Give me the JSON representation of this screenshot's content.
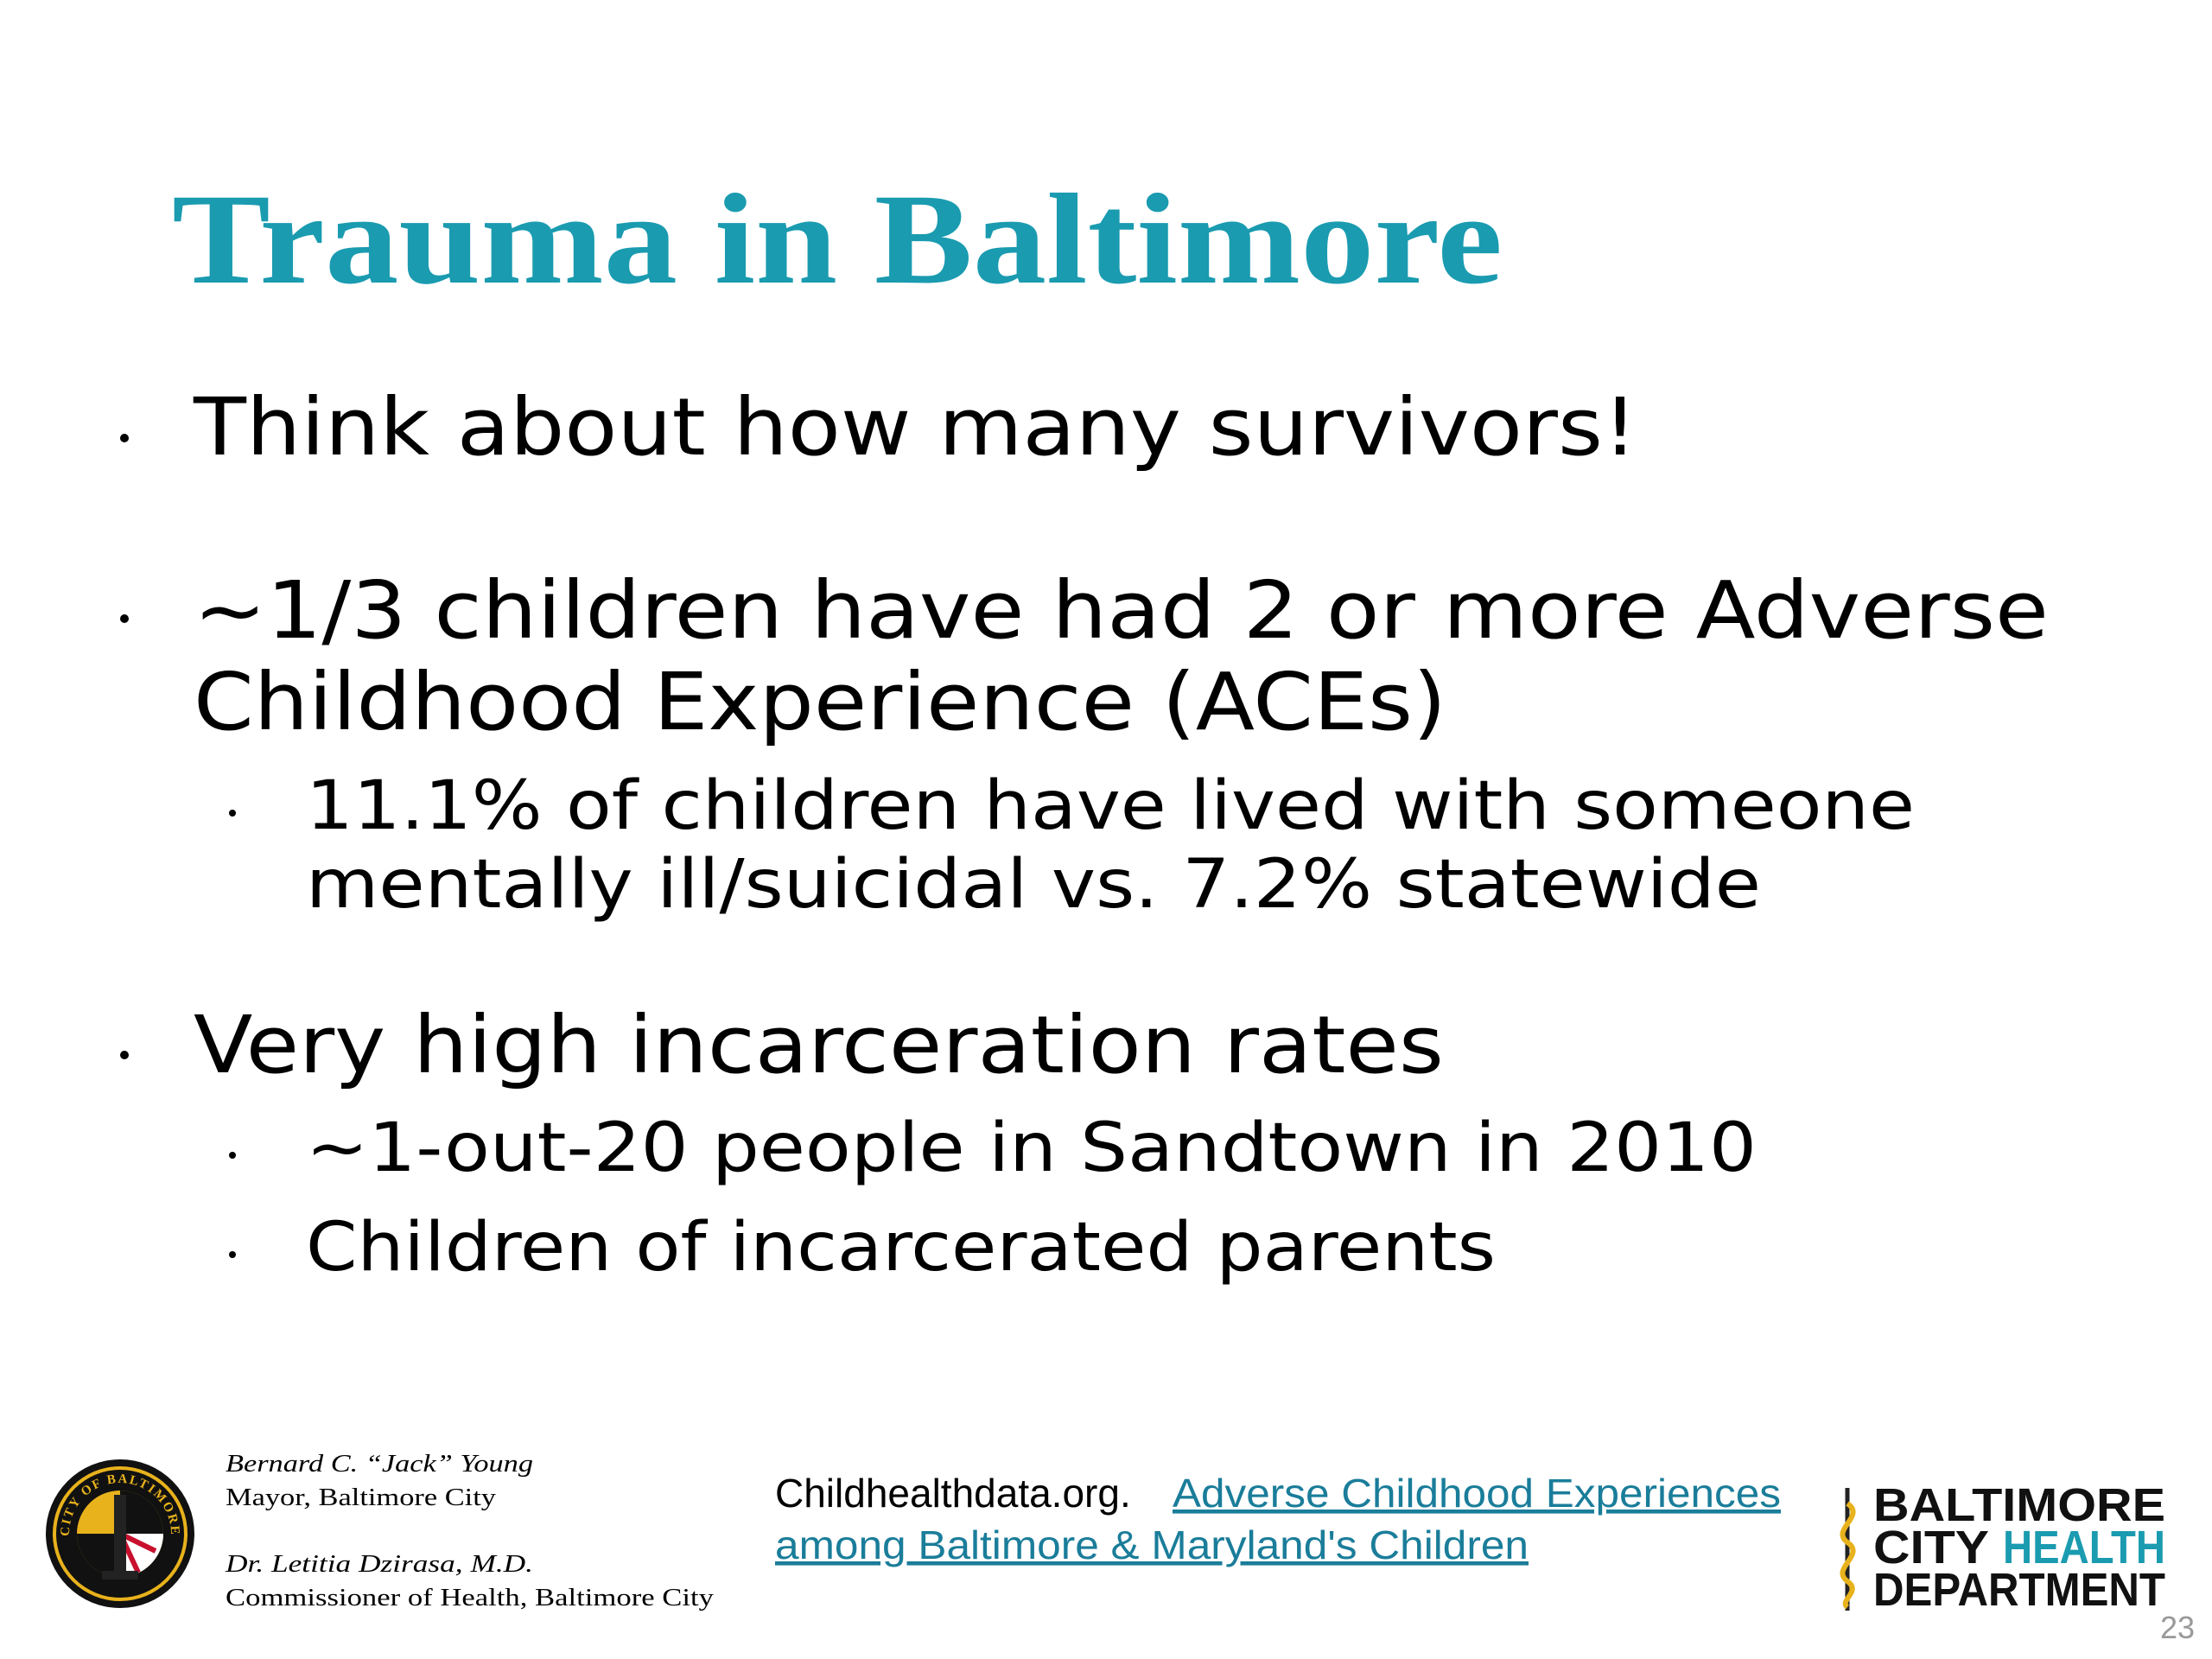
{
  "title": "Trauma in Baltimore",
  "bullets": [
    {
      "lines": [
        "Think about how many survivors!"
      ]
    },
    {
      "lines": [
        "~1/3 children have had 2 or more Adverse",
        "Childhood Experience (ACEs)"
      ],
      "sub": [
        {
          "lines": [
            "11.1% of children have lived with someone",
            "mentally ill/suicidal vs. 7.2% statewide"
          ]
        }
      ]
    },
    {
      "lines": [
        "Very high incarceration rates"
      ],
      "sub": [
        {
          "lines": [
            "~1-out-20 people in Sandtown in 2010"
          ]
        },
        {
          "lines": [
            "Children of incarcerated parents"
          ]
        }
      ]
    }
  ],
  "footer": {
    "seal": "CITY OF BALTIMORE",
    "mayor": {
      "name": "Bernard C. “Jack” Young",
      "role": "Mayor, Baltimore City"
    },
    "commissioner": {
      "name": "Dr. Letitia Dzirasa, M.D.",
      "role": "Commissioner of Health, Baltimore City"
    },
    "citation": {
      "source": "Childhealthdata.org.",
      "link_lines": [
        "Adverse Childhood Experiences",
        "among Baltimore & Maryland's Children"
      ]
    },
    "logo": [
      "BALTIMORE",
      "CITY",
      "HEALTH",
      "DEPARTMENT"
    ],
    "page_number": "23"
  }
}
